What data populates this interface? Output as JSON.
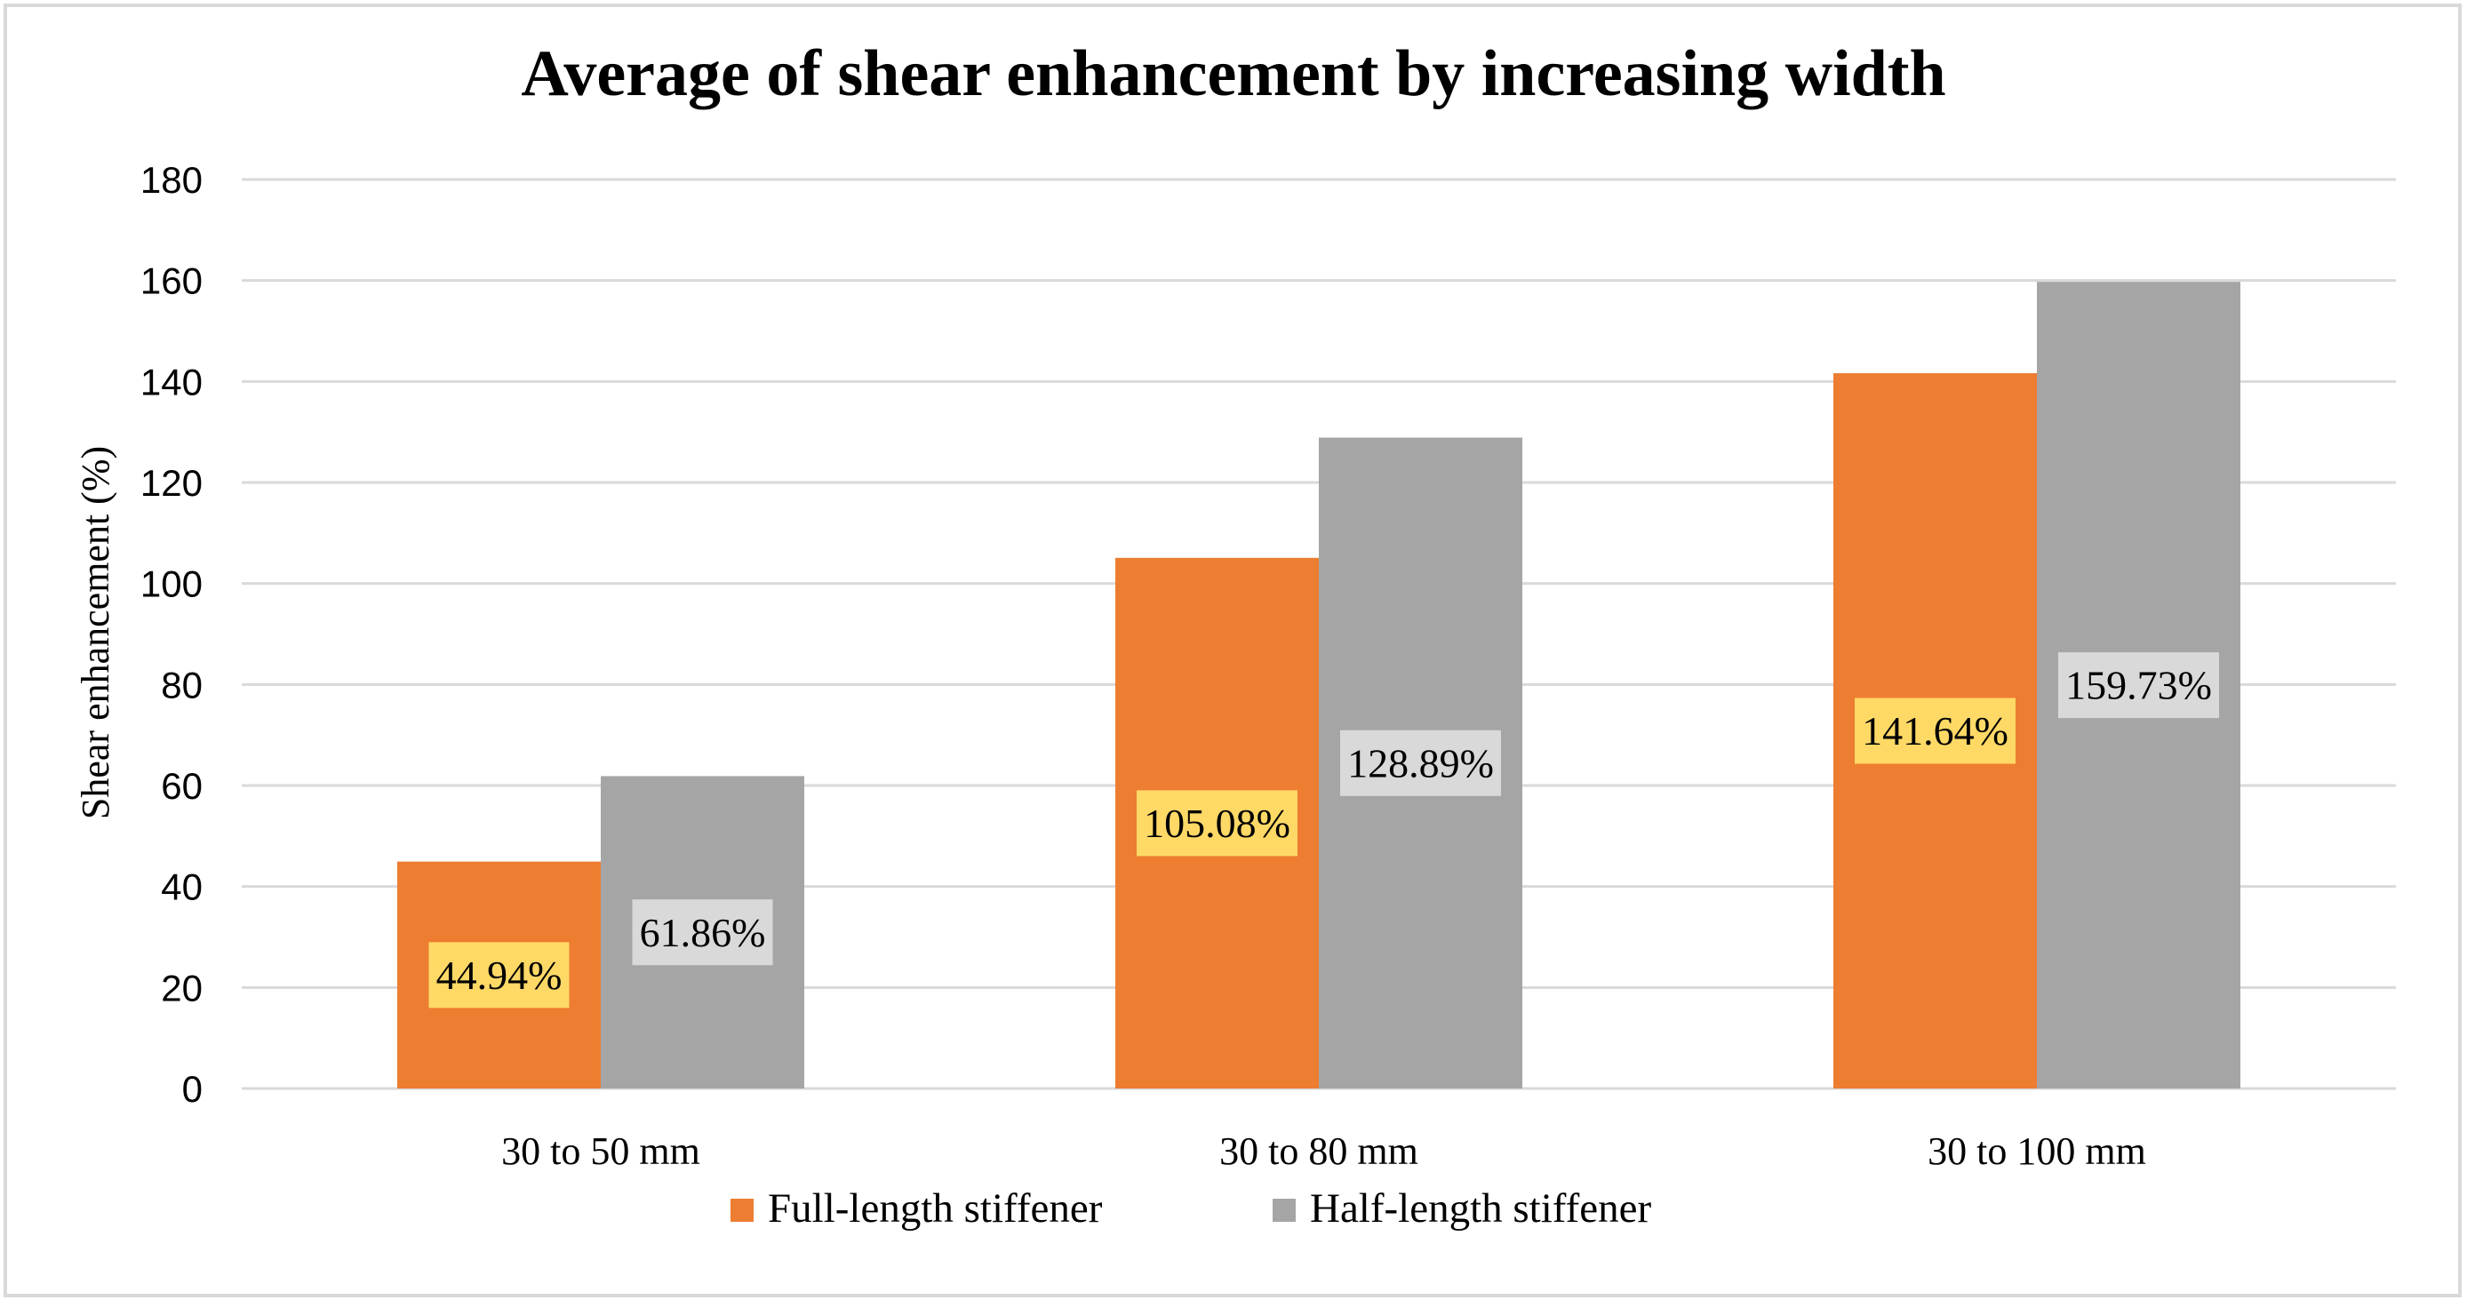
{
  "chart_data": {
    "type": "bar",
    "title": "Average of shear enhancement by increasing width",
    "xlabel": "",
    "ylabel": "Shear enhancement (%)",
    "ylim": [
      0,
      180
    ],
    "yticks": [
      0,
      20,
      40,
      60,
      80,
      100,
      120,
      140,
      160,
      180
    ],
    "categories": [
      "30 to 50 mm",
      "30 to 80 mm",
      "30 to 100 mm"
    ],
    "series": [
      {
        "name": "Full-length stiffener",
        "color": "#ED7D31",
        "label_bg": "#FFD966",
        "values": [
          44.94,
          105.08,
          141.64
        ],
        "labels": [
          "44.94%",
          "105.08%",
          "141.64%"
        ]
      },
      {
        "name": "Half-length stiffener",
        "color": "#A5A5A5",
        "label_bg": "#D9D9D9",
        "values": [
          61.86,
          128.89,
          159.73
        ],
        "labels": [
          "61.86%",
          "128.89%",
          "159.73%"
        ]
      }
    ],
    "grid": true,
    "legend": "bottom-center",
    "gridline_color": "#D9D9D9",
    "border_color": "#D9D9D9"
  }
}
